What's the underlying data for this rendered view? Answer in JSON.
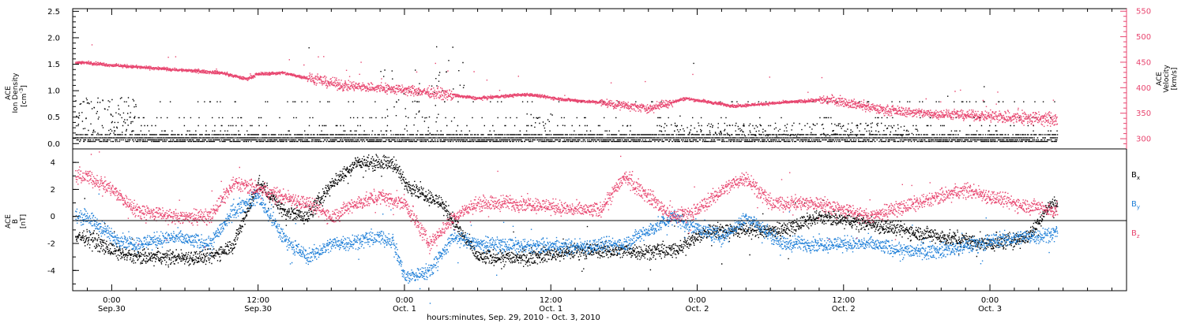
{
  "chart_data": [
    {
      "type": "scatter",
      "panel": "top",
      "ylabel_left": [
        "ACE",
        "Ion Density",
        "[cm",
        "-3",
        "]"
      ],
      "ylabel_right": [
        "ACE",
        "Velocity",
        "[km/s]"
      ],
      "ylim_left": [
        -0.1,
        2.55
      ],
      "yticks_left": [
        "0.0",
        "0.5",
        "1.0",
        "1.5",
        "2.0",
        "2.5"
      ],
      "ylim_right": [
        280,
        555
      ],
      "yticks_right": [
        "300",
        "350",
        "400",
        "450",
        "500",
        "550"
      ],
      "colors": {
        "density": "#000000",
        "velocity": "#e8456f"
      },
      "velocity_trend": {
        "hours": [
          -2,
          0,
          3,
          6,
          9,
          11,
          12,
          14,
          16,
          19,
          22,
          26,
          30,
          34,
          37,
          40,
          44,
          47,
          51,
          55,
          59,
          63,
          67,
          72,
          76,
          78
        ],
        "values": [
          450,
          445,
          440,
          435,
          430,
          418,
          428,
          430,
          420,
          405,
          400,
          392,
          380,
          388,
          378,
          372,
          360,
          380,
          365,
          372,
          378,
          358,
          350,
          345,
          340,
          338
        ]
      },
      "density_levels": [
        0.05,
        0.08,
        0.12,
        0.18,
        0.25,
        0.35,
        0.5,
        0.8
      ]
    },
    {
      "type": "scatter",
      "panel": "bottom",
      "ylabel": [
        "ACE",
        "B",
        "[nT]"
      ],
      "ylim": [
        -5.5,
        5.0
      ],
      "yticks": [
        "-4",
        "-2",
        "0",
        "2",
        "4"
      ],
      "legend": [
        {
          "name": "B",
          "sub": "x",
          "color": "#000000"
        },
        {
          "name": "B",
          "sub": "y",
          "color": "#1e7fd8"
        },
        {
          "name": "B",
          "sub": "z",
          "color": "#e8456f"
        }
      ],
      "series": [
        {
          "name": "Bx",
          "color": "#000000",
          "hours": [
            -2,
            0,
            2,
            5,
            8,
            10,
            12,
            14,
            16,
            18,
            20,
            22,
            23,
            24,
            27,
            30,
            34,
            38,
            42,
            46,
            49,
            52,
            55,
            58,
            62,
            65,
            68,
            72,
            75,
            77
          ],
          "values": [
            -1.5,
            -2.5,
            -3,
            -3,
            -3,
            -2,
            2.5,
            0.5,
            0,
            2.5,
            4,
            4,
            4,
            2.5,
            1,
            -3,
            -3,
            -2.5,
            -2.5,
            -2.5,
            -1,
            -1,
            -1,
            0,
            -0.5,
            -1,
            -1.5,
            -2,
            -1.5,
            1
          ]
        },
        {
          "name": "By",
          "color": "#1e7fd8",
          "hours": [
            -2,
            0,
            2,
            5,
            8,
            10,
            12,
            14,
            16,
            18,
            22,
            23,
            24,
            26,
            28,
            30,
            34,
            38,
            42,
            46,
            47,
            50,
            52,
            55,
            58,
            62,
            65,
            68,
            72,
            77
          ],
          "values": [
            0,
            -1.5,
            -2,
            -1.5,
            -2,
            0.5,
            1.5,
            -1.5,
            -3,
            -2,
            -1.5,
            -1.8,
            -4.5,
            -4,
            -1.5,
            -2,
            -2.2,
            -2.2,
            -2,
            0,
            -0.5,
            -1.5,
            0,
            -2,
            -2,
            -2,
            -2.5,
            -2.5,
            -1.8,
            -1.2
          ]
        },
        {
          "name": "Bz",
          "color": "#e8456f",
          "hours": [
            -2,
            0,
            2,
            5,
            8,
            10,
            12,
            14,
            16,
            18,
            20,
            22,
            24,
            26,
            28,
            30,
            34,
            38,
            40,
            42,
            46,
            48,
            50,
            52,
            54,
            58,
            62,
            66,
            70,
            74,
            77
          ],
          "values": [
            3,
            2,
            0.5,
            0,
            0,
            2.5,
            2,
            1.5,
            1,
            0,
            1,
            1.5,
            1,
            -2,
            0,
            1,
            1,
            0.5,
            0.5,
            3,
            0,
            0.5,
            2,
            3,
            1,
            1,
            0,
            1,
            2,
            1,
            0.5
          ]
        }
      ]
    }
  ],
  "x_axis": {
    "hours_min": -3.2,
    "hours_max": 83.2,
    "ticks": [
      {
        "hour": 0,
        "time": "0:00",
        "date": "Sep.30"
      },
      {
        "hour": 12,
        "time": "12:00",
        "date": "Sep.30"
      },
      {
        "hour": 24,
        "time": "0:00",
        "date": "Oct. 1"
      },
      {
        "hour": 36,
        "time": "12:00",
        "date": "Oct. 1"
      },
      {
        "hour": 48,
        "time": "0:00",
        "date": "Oct. 2"
      },
      {
        "hour": 60,
        "time": "12:00",
        "date": "Oct. 2"
      },
      {
        "hour": 72,
        "time": "0:00",
        "date": "Oct. 3"
      }
    ],
    "minor_step_hours": 2,
    "data_end_hour": 77.5,
    "xlabel": "hours:minutes, Sep. 29, 2010 - Oct.  3, 2010"
  }
}
